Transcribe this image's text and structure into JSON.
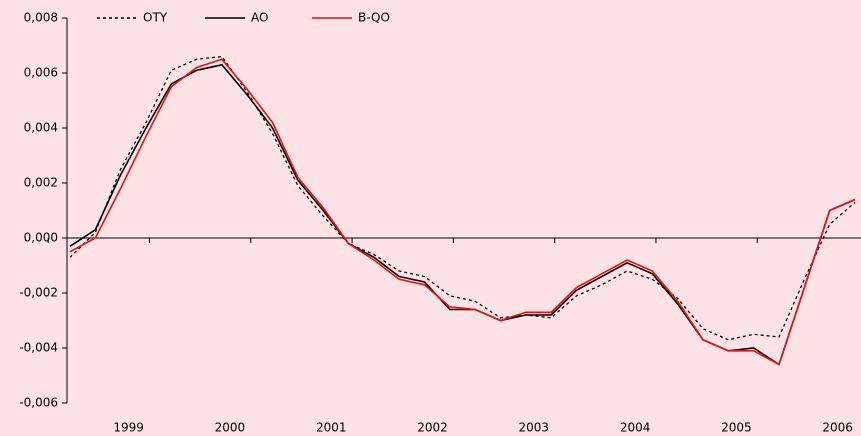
{
  "chart_data": {
    "type": "line",
    "categories": [
      null,
      null,
      "1999",
      null,
      null,
      null,
      "2000",
      null,
      null,
      null,
      "2001",
      null,
      null,
      null,
      "2002",
      null,
      null,
      null,
      "2003",
      null,
      null,
      null,
      "2004",
      null,
      null,
      null,
      "2005",
      null,
      null,
      null,
      "2006",
      null
    ],
    "series": [
      {
        "name": "OTY",
        "color": "#000000",
        "dash": true,
        "values": [
          -0.0007,
          0.0002,
          0.0025,
          0.0042,
          0.0061,
          0.0065,
          0.0066,
          0.0053,
          0.0038,
          0.0019,
          0.0008,
          -0.0002,
          -0.0006,
          -0.0012,
          -0.0014,
          -0.0021,
          -0.0023,
          -0.0029,
          -0.0028,
          -0.0029,
          -0.0021,
          -0.0017,
          -0.0012,
          -0.0015,
          -0.0022,
          -0.0033,
          -0.0037,
          -0.0035,
          -0.0036,
          -0.0015,
          0.0005,
          0.0013
        ]
      },
      {
        "name": "AO",
        "color": "#000000",
        "dash": false,
        "values": [
          -0.0003,
          0.0003,
          0.0023,
          0.004,
          0.0056,
          0.0061,
          0.0063,
          0.0052,
          0.004,
          0.0021,
          0.001,
          -0.0002,
          -0.0007,
          -0.0014,
          -0.0016,
          -0.0026,
          -0.0026,
          -0.003,
          -0.0028,
          -0.0028,
          -0.0019,
          -0.0014,
          -0.0009,
          -0.0013,
          -0.0024,
          -0.0037,
          -0.0041,
          -0.004,
          -0.0046,
          -0.0018,
          0.001,
          0.0014
        ]
      },
      {
        "name": "B-QO",
        "color": "#e8101a",
        "dash": false,
        "values": [
          -0.0005,
          0.0,
          0.0018,
          0.0037,
          0.0055,
          0.0062,
          0.0065,
          0.0054,
          0.0042,
          0.0022,
          0.0011,
          -0.0002,
          -0.0008,
          -0.0015,
          -0.0017,
          -0.0025,
          -0.0026,
          -0.003,
          -0.0027,
          -0.0027,
          -0.0018,
          -0.0013,
          -0.0008,
          -0.0012,
          -0.0023,
          -0.0037,
          -0.0041,
          -0.0041,
          -0.0046,
          -0.0018,
          0.001,
          0.0014
        ]
      }
    ],
    "ylim": [
      -0.006,
      0.008
    ],
    "yticks": [
      {
        "value": -0.006,
        "label": "-0,006"
      },
      {
        "value": -0.004,
        "label": "-0,004"
      },
      {
        "value": -0.002,
        "label": "-0,002"
      },
      {
        "value": 0,
        "label": "0,000"
      },
      {
        "value": 0.002,
        "label": "0,002"
      },
      {
        "value": 0.004,
        "label": "0,004"
      },
      {
        "value": 0.006,
        "label": "0,006"
      },
      {
        "value": 0.008,
        "label": "0,008"
      }
    ],
    "legend": "top"
  }
}
